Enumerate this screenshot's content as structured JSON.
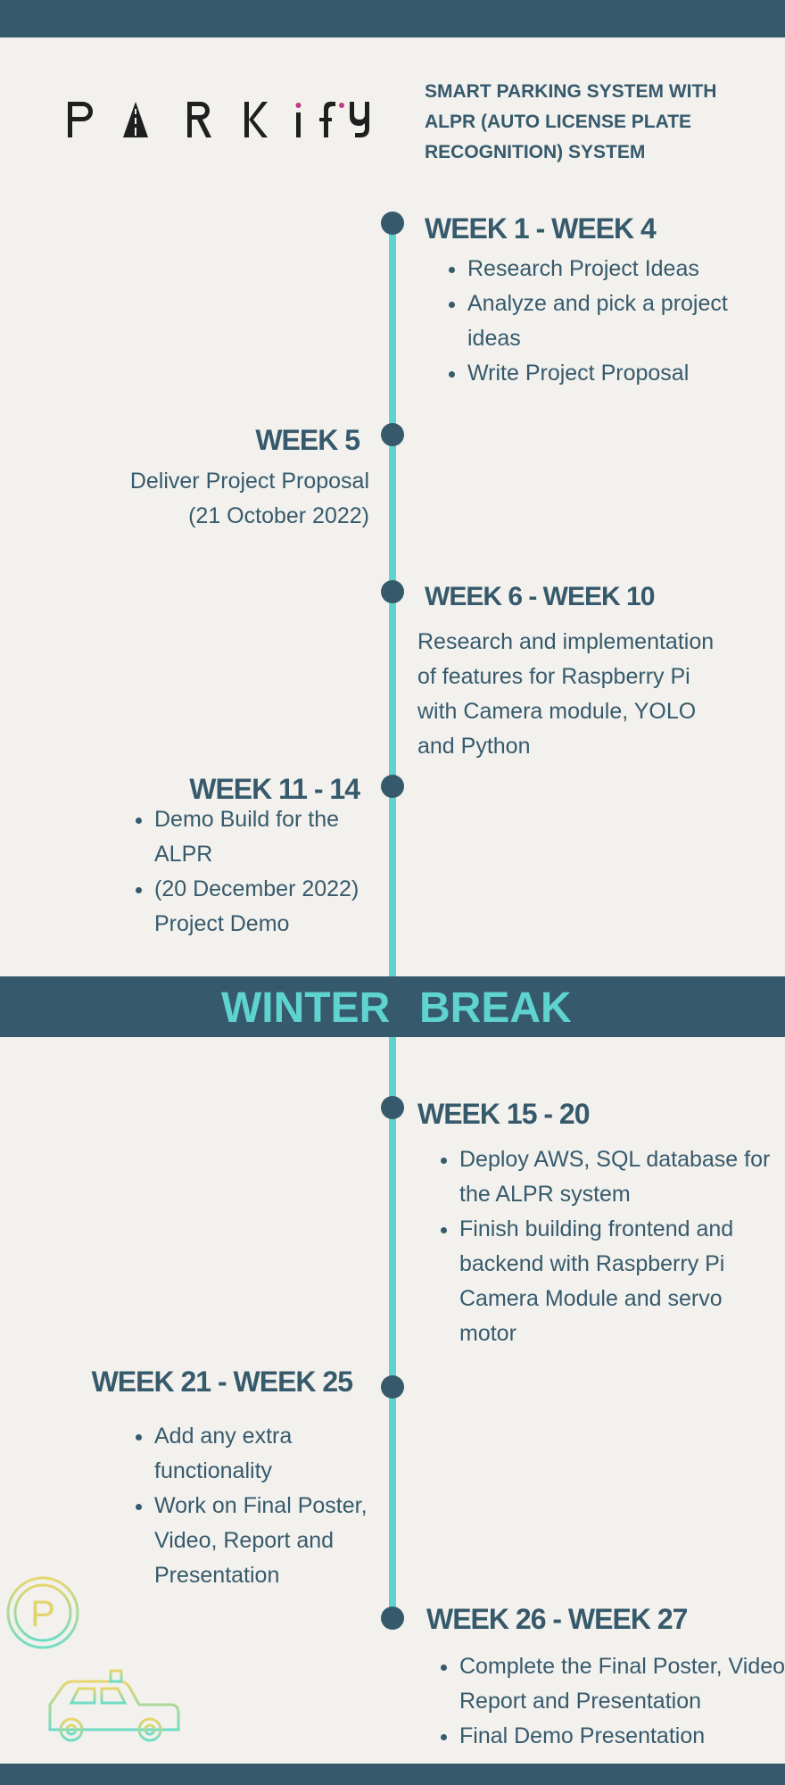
{
  "logo": {
    "text": "PARKIFY"
  },
  "tagline": "SMART PARKING SYSTEM WITH ALPR (AUTO LICENSE PLATE RECOGNITION) SYSTEM",
  "colors": {
    "navy": "#365a6c",
    "teal": "#5fd3cf",
    "background": "#f3f1ed",
    "logo_dot": "#c0398a"
  },
  "milestones": [
    {
      "heading": "WEEK 1 - WEEK 4",
      "items": [
        "Research Project Ideas",
        "Analyze and pick a project ideas",
        "Write Project Proposal"
      ]
    },
    {
      "heading": "WEEK 5",
      "text": "Deliver Project Proposal (21 October 2022)"
    },
    {
      "heading": "WEEK 6 - WEEK 10",
      "text": "Research and implementation of features for Raspberry Pi with Camera module, YOLO and Python"
    },
    {
      "heading": "WEEK 11 - 14",
      "items": [
        "Demo Build for the ALPR",
        "(20 December 2022) Project Demo"
      ]
    },
    {
      "heading": "WEEK 15 - 20",
      "items": [
        "Deploy AWS, SQL database for the ALPR system",
        "Finish building frontend and backend with Raspberry Pi Camera Module and servo motor"
      ]
    },
    {
      "heading": "WEEK 21 - WEEK 25",
      "items": [
        "Add any extra functionality",
        " Work on Final Poster, Video, Report and Presentation"
      ]
    },
    {
      "heading": "WEEK 26 - WEEK 27",
      "items": [
        "Complete the Final Poster, Video, Report and Presentation",
        "Final Demo Presentation"
      ]
    }
  ],
  "winter_break": {
    "word1": "WINTER",
    "word2": "BREAK"
  },
  "illustration": {
    "sign_letter": "P",
    "icon": "parking-sign-and-taxi-icon"
  }
}
